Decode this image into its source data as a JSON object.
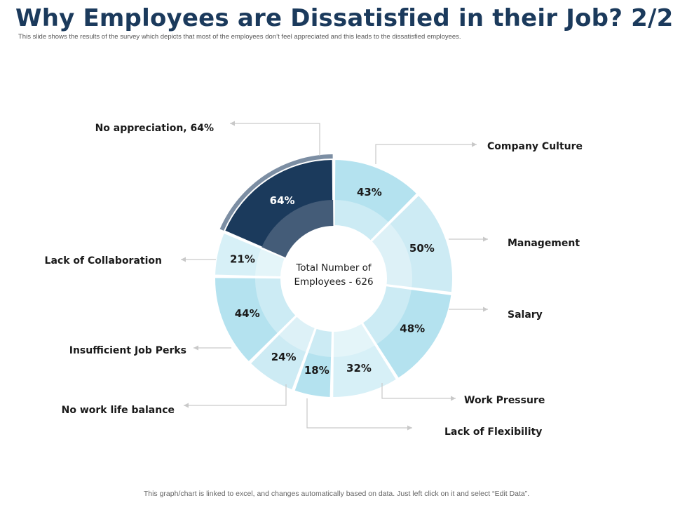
{
  "title": "Why Employees are Dissatisfied in their Job? 2/2",
  "subtitle": "This slide shows the results of the survey which depicts that most of the employees don’t feel appreciated and this leads to the dissatisfied employees.",
  "footer": "This graph/chart is linked to excel, and changes automatically based on data. Just left click on it and select “Edit Data”.",
  "chart_data": {
    "type": "pie",
    "variant": "donut",
    "center_label": [
      "Total Number of",
      "Employees - 626"
    ],
    "categories": [
      "Company Culture",
      "Management",
      "Salary",
      "Work Pressure",
      "Lack of Flexibility",
      "No work life balance",
      "Insufficient Job Perks",
      "Lack of Collaboration",
      "No appreciation"
    ],
    "values": [
      43,
      50,
      48,
      32,
      18,
      24,
      44,
      21,
      64
    ],
    "value_labels": [
      "43%",
      "50%",
      "48%",
      "32%",
      "18%",
      "24%",
      "44%",
      "21%",
      "64%"
    ],
    "callout_labels": [
      "Company Culture",
      "Management",
      "Salary",
      "Work Pressure",
      "Lack of Flexibility",
      "No work life balance",
      "Insufficient Job Perks",
      "Lack of Collaboration",
      "No appreciation, 64%"
    ],
    "colors": [
      "#b4e2ef",
      "#cdebf4",
      "#b4e2ef",
      "#d7f0f7",
      "#b4e2ef",
      "#cdebf4",
      "#b4e2ef",
      "#d7f0f7",
      "#1b3a5c"
    ],
    "highlight": "No appreciation"
  }
}
